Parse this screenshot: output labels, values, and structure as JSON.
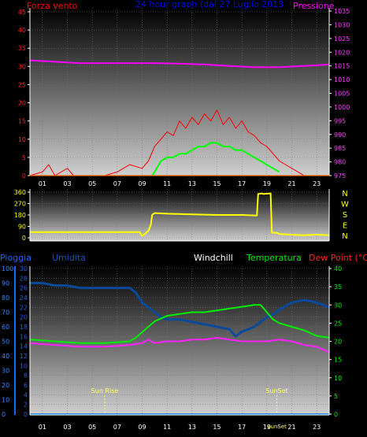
{
  "colors": {
    "wind": "#ff0000",
    "gust_line": "#00ff00",
    "pressure": "#ff00ff",
    "direction": "#ffff00",
    "humidity": "#0a4a9a",
    "temperature": "#00ee00",
    "dewpoint": "#ff22ff",
    "rain": "#2288ff",
    "rain_axis": "#1a66ff",
    "humidity_axis": "#1a4fcc",
    "sun_label": "#ffff66"
  },
  "chart_data": [
    {
      "type": "line",
      "title": "24 hour graph (dal   27 Luglio 2013",
      "left_label": "Forza vento",
      "right_label": "Pressione",
      "x_ticks": [
        "01",
        "03",
        "05",
        "07",
        "09",
        "11",
        "13",
        "15",
        "17",
        "19",
        "21",
        "23"
      ],
      "y_left_ticks": [
        "0",
        "5",
        "10",
        "15",
        "20",
        "25",
        "30",
        "35",
        "40",
        "45"
      ],
      "y_left_range": [
        0,
        45
      ],
      "y_right_ticks": [
        "975",
        "980",
        "985",
        "990",
        "995",
        "1000",
        "1005",
        "1010",
        "1015",
        "1020",
        "1025",
        "1030",
        "1035"
      ],
      "y_right_range": [
        975,
        1035
      ],
      "series": [
        {
          "key": "wind",
          "x": [
            0,
            1,
            1.5,
            2,
            3,
            3.5,
            4,
            5,
            6,
            7,
            8,
            9,
            9.5,
            10,
            10.5,
            11,
            11.5,
            12,
            12.5,
            13,
            13.5,
            14,
            14.5,
            15,
            15.5,
            16,
            16.5,
            17,
            17.5,
            18,
            18.5,
            19,
            19.5,
            20,
            21,
            22,
            23,
            24
          ],
          "y": [
            0,
            1,
            3,
            0,
            2,
            0,
            0,
            0,
            0,
            1,
            3,
            2,
            4,
            8,
            10,
            12,
            11,
            15,
            13,
            16,
            14,
            17,
            15,
            18,
            14,
            16,
            13,
            15,
            12,
            11,
            9,
            8,
            6,
            4,
            2,
            0,
            0,
            0
          ]
        },
        {
          "key": "gust_line",
          "x": [
            9.8,
            10,
            10.5,
            11,
            11.5,
            12,
            12.5,
            13,
            13.5,
            14,
            14.5,
            15,
            15.5,
            16,
            16.5,
            17,
            17.5,
            18,
            18.5,
            19,
            19.5,
            20
          ],
          "y": [
            0,
            1,
            4,
            5,
            5,
            6,
            6,
            7,
            8,
            8,
            9,
            9,
            8,
            8,
            7,
            7,
            6,
            5,
            4,
            3,
            2,
            1
          ]
        },
        {
          "key": "pressure",
          "x": [
            0,
            2,
            4,
            6,
            8,
            10,
            12,
            14,
            16,
            18,
            20,
            22,
            24
          ],
          "y": [
            1017,
            1016.5,
            1016,
            1016,
            1016,
            1016,
            1015.8,
            1015.5,
            1015,
            1014.5,
            1014.5,
            1015,
            1015.5
          ]
        }
      ]
    },
    {
      "type": "line",
      "y_left_ticks": [
        "0",
        "90",
        "180",
        "270",
        "360"
      ],
      "y_left_range": [
        0,
        360
      ],
      "y_right_ticks": [
        "N",
        "W",
        "S",
        "E",
        "N"
      ],
      "series": [
        {
          "key": "direction",
          "x": [
            0,
            6,
            8.8,
            9.0,
            9.2,
            9.5,
            9.7,
            9.8,
            10,
            11,
            13,
            15,
            17,
            18.2,
            18.3,
            18.6,
            18.7,
            19.3,
            19.4,
            19.8,
            20,
            21,
            22,
            23,
            24
          ],
          "y": [
            45,
            45,
            45,
            15,
            30,
            55,
            105,
            180,
            195,
            190,
            185,
            180,
            180,
            175,
            345,
            350,
            345,
            350,
            40,
            40,
            30,
            25,
            20,
            25,
            20
          ]
        }
      ]
    },
    {
      "type": "line",
      "labels": {
        "rain": "Pioggia",
        "humidity": "Umidita",
        "windchill": "Windchill",
        "temperature": "Temperatura",
        "dewpoint": "Dew Point (°C)"
      },
      "y_rain_ticks": [
        "0",
        "10",
        "20",
        "30",
        "40",
        "50",
        "60",
        "70",
        "80",
        "90",
        "100"
      ],
      "y_rain_range": [
        0,
        100
      ],
      "y_hum_ticks": [
        "0",
        "2",
        "4",
        "6",
        "8",
        "10",
        "12",
        "14",
        "16",
        "18",
        "20",
        "22",
        "24",
        "26",
        "28",
        "30"
      ],
      "y_hum_range": [
        0,
        30
      ],
      "y_temp_ticks": [
        "0",
        "5",
        "10",
        "15",
        "20",
        "25",
        "30",
        "35",
        "40"
      ],
      "y_temp_range": [
        0,
        40
      ],
      "annotations": [
        "Sun Rise",
        "SunSet"
      ],
      "sun_events_hour": [
        6,
        19.8
      ],
      "bottom_tick_label": "SunSet",
      "series": [
        {
          "key": "humidity",
          "scale": "hum",
          "x": [
            0,
            1,
            2,
            3,
            4,
            5,
            6,
            7,
            8,
            8.5,
            9,
            9.5,
            10,
            10.5,
            11,
            12,
            13,
            14,
            15,
            16,
            16.5,
            17,
            17.5,
            18,
            18.5,
            19,
            19.5,
            20,
            21,
            22,
            23,
            24
          ],
          "y": [
            27,
            27,
            26.5,
            26.5,
            26,
            26,
            26,
            26,
            26,
            25,
            23,
            22,
            21,
            20,
            19.5,
            19.5,
            19,
            18.5,
            18,
            17.5,
            16,
            17,
            17.5,
            18,
            19,
            20,
            20.5,
            21.5,
            23,
            23.5,
            23,
            22
          ]
        },
        {
          "key": "temperature",
          "scale": "temp",
          "x": [
            0,
            2,
            4,
            6,
            8,
            8.5,
            9,
            9.5,
            10,
            11,
            12,
            13,
            14,
            15,
            16,
            17,
            18,
            18.5,
            19,
            19.5,
            20,
            21,
            22,
            23,
            24
          ],
          "y": [
            20.5,
            20,
            19.5,
            19.5,
            20,
            21,
            22.5,
            24,
            25.5,
            27,
            27.5,
            28,
            28,
            28.5,
            29,
            29.5,
            30,
            30,
            28,
            26,
            25,
            24,
            23,
            21.5,
            21
          ]
        },
        {
          "key": "dewpoint",
          "scale": "temp",
          "x": [
            0,
            2,
            4,
            6,
            8,
            9,
            9.5,
            10,
            11,
            12,
            13,
            14,
            15,
            16,
            17,
            18,
            19,
            20,
            21,
            22,
            23,
            24
          ],
          "y": [
            19.5,
            19,
            18.5,
            18.5,
            19,
            19.5,
            20.5,
            19.5,
            20,
            20,
            20.5,
            20.5,
            21,
            20.5,
            20,
            20,
            20,
            20.5,
            20,
            19,
            18.5,
            17
          ]
        },
        {
          "key": "rain",
          "scale": "rain",
          "x": [
            0,
            24
          ],
          "y": [
            0,
            0
          ]
        }
      ]
    }
  ]
}
